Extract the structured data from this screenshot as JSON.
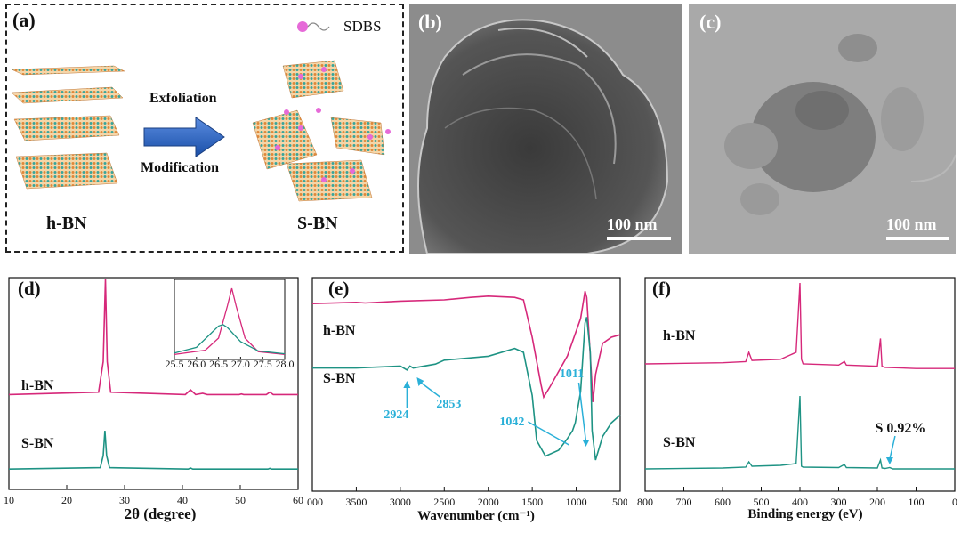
{
  "figure": {
    "panel_a": {
      "label": "(a)",
      "legend": "SDBS",
      "arrow_top": "Exfoliation",
      "arrow_bottom": "Modification",
      "left_name": "h-BN",
      "right_name": "S-BN"
    },
    "panel_b": {
      "label": "(b)",
      "scale": "100 nm"
    },
    "panel_c": {
      "label": "(c)",
      "scale": "100 nm"
    }
  },
  "colors": {
    "hbn": "#d6287a",
    "sbn": "#1e9384",
    "annotation": "#2ab0d8",
    "hbn_layer_orange": "#e0883a",
    "hbn_layer_teal": "#3aa59a",
    "sdbs": "#e66ad8"
  },
  "chart_data": [
    {
      "panel": "(d)",
      "type": "line",
      "xlabel": "2θ (degree)",
      "ylabel": "",
      "xlim": [
        10,
        60
      ],
      "xticks": [
        10,
        20,
        30,
        40,
        50,
        60
      ],
      "grid": false,
      "series": [
        {
          "name": "h-BN",
          "x": [
            10,
            25.5,
            26.3,
            26.7,
            27.0,
            27.6,
            40.5,
            41.4,
            42.3,
            43.5,
            44.3,
            45,
            49.8,
            50.2,
            50.6,
            54.5,
            55.1,
            55.7,
            60
          ],
          "y": [
            0.02,
            0.04,
            0.3,
            1.0,
            0.3,
            0.04,
            0.02,
            0.06,
            0.02,
            0.03,
            0.02,
            0.02,
            0.02,
            0.025,
            0.02,
            0.02,
            0.04,
            0.02,
            0.02
          ]
        },
        {
          "name": "S-BN",
          "x": [
            10,
            25.8,
            26.3,
            26.6,
            26.9,
            27.4,
            41.0,
            41.4,
            41.8,
            54.8,
            55.1,
            55.4,
            60
          ],
          "y": [
            0.01,
            0.03,
            0.2,
            0.55,
            0.2,
            0.03,
            0.01,
            0.025,
            0.01,
            0.01,
            0.02,
            0.01,
            0.01
          ]
        }
      ],
      "inset": {
        "xlim": [
          25.5,
          28.0
        ],
        "xticks": [
          "25.5",
          "26.0",
          "26.5",
          "27.0",
          "27.5",
          "28.0"
        ],
        "series": [
          {
            "name": "h-BN",
            "x": [
              25.5,
              26.2,
              26.5,
              26.7,
              26.8,
              26.9,
              27.1,
              27.4,
              28.0
            ],
            "y": [
              0.02,
              0.08,
              0.25,
              0.7,
              0.95,
              0.7,
              0.25,
              0.06,
              0.02
            ]
          },
          {
            "name": "S-BN",
            "x": [
              25.5,
              26.0,
              26.3,
              26.5,
              26.6,
              26.7,
              27.0,
              27.4,
              28.0
            ],
            "y": [
              0.04,
              0.12,
              0.3,
              0.42,
              0.44,
              0.4,
              0.2,
              0.07,
              0.03
            ]
          }
        ]
      }
    },
    {
      "panel": "(e)",
      "type": "line",
      "xlabel": "Wavenumber (cm⁻¹)",
      "ylabel": "",
      "xlim": [
        4000,
        500
      ],
      "xticks": [
        4000,
        3500,
        3000,
        2500,
        2000,
        1500,
        1000,
        500
      ],
      "grid": false,
      "series": [
        {
          "name": "h-BN",
          "x": [
            4000,
            3500,
            3400,
            3000,
            2500,
            2200,
            2000,
            1700,
            1600,
            1500,
            1400,
            1370,
            1300,
            1100,
            950,
            900,
            880,
            840,
            810,
            780,
            700,
            600,
            500
          ],
          "y": [
            0.87,
            0.88,
            0.875,
            0.89,
            0.9,
            0.92,
            0.93,
            0.92,
            0.9,
            0.6,
            0.22,
            0.12,
            0.2,
            0.45,
            0.75,
            0.97,
            0.92,
            0.45,
            0.08,
            0.3,
            0.55,
            0.6,
            0.62
          ]
        },
        {
          "name": "S-BN",
          "x": [
            4000,
            3500,
            3000,
            2924,
            2890,
            2853,
            2600,
            2500,
            2000,
            1700,
            1600,
            1500,
            1450,
            1350,
            1200,
            1100,
            1042,
            1011,
            950,
            900,
            880,
            840,
            820,
            780,
            700,
            600,
            500
          ],
          "y": [
            0.52,
            0.52,
            0.53,
            0.51,
            0.53,
            0.52,
            0.54,
            0.56,
            0.58,
            0.62,
            0.6,
            0.38,
            0.15,
            0.07,
            0.1,
            0.16,
            0.2,
            0.24,
            0.4,
            0.75,
            0.78,
            0.6,
            0.2,
            0.05,
            0.17,
            0.24,
            0.28
          ]
        }
      ],
      "annotations": [
        "2924",
        "2853",
        "1042",
        "1011"
      ]
    },
    {
      "panel": "(f)",
      "type": "line",
      "xlabel": "Binding energy (eV)",
      "ylabel": "",
      "xlim": [
        800,
        0
      ],
      "xticks": [
        800,
        700,
        600,
        500,
        400,
        300,
        200,
        100,
        0
      ],
      "grid": false,
      "series": [
        {
          "name": "h-BN",
          "x": [
            800,
            600,
            540,
            532,
            524,
            450,
            410,
            400,
            396,
            392,
            300,
            285,
            280,
            200,
            192,
            188,
            180,
            100,
            0
          ],
          "y": [
            0.3,
            0.31,
            0.32,
            0.4,
            0.33,
            0.34,
            0.4,
            1.0,
            0.34,
            0.3,
            0.29,
            0.32,
            0.29,
            0.28,
            0.52,
            0.28,
            0.27,
            0.26,
            0.26
          ]
        },
        {
          "name": "S-BN",
          "x": [
            800,
            600,
            540,
            532,
            524,
            450,
            410,
            400,
            396,
            392,
            300,
            285,
            280,
            200,
            192,
            188,
            180,
            168,
            160,
            100,
            0
          ],
          "y": [
            0.03,
            0.04,
            0.05,
            0.11,
            0.06,
            0.07,
            0.09,
            0.85,
            0.06,
            0.05,
            0.045,
            0.08,
            0.045,
            0.04,
            0.13,
            0.04,
            0.035,
            0.045,
            0.03,
            0.03,
            0.03
          ]
        }
      ],
      "annotations": [
        "S 0.92%"
      ]
    }
  ],
  "panel_labels": {
    "d": "(d)",
    "e": "(e)",
    "f": "(f)"
  }
}
